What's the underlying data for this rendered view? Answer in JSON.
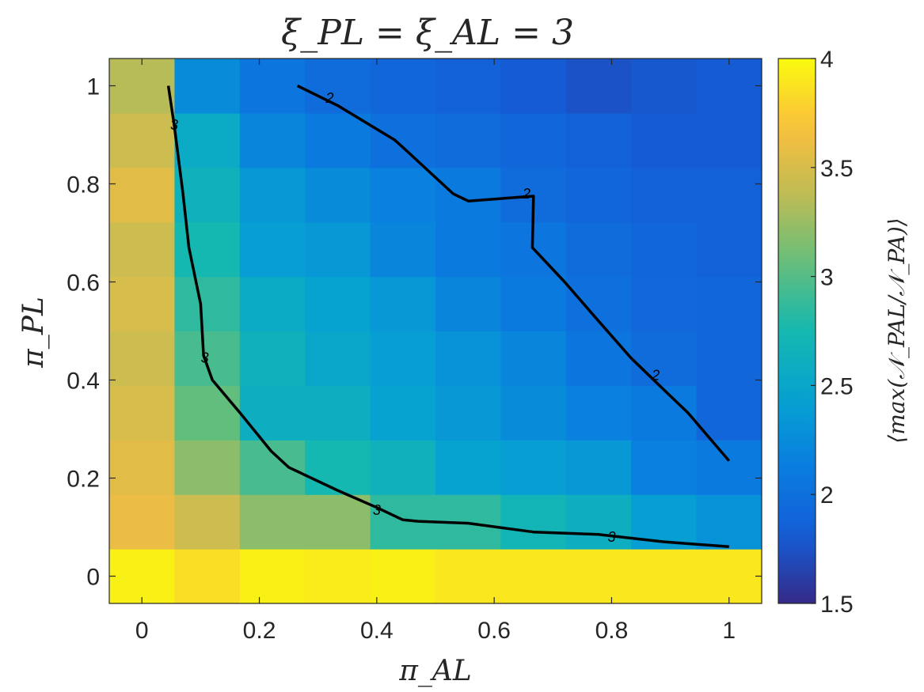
{
  "chart_data": {
    "type": "heatmap",
    "title": "ξ_PL = ξ_AL = 3",
    "xlabel": "π_AL",
    "ylabel": "π_PL",
    "colorbar_label": "⟨max(𝒩_PAL/𝒩_PA)⟩",
    "x": [
      0,
      0.1111,
      0.2222,
      0.3333,
      0.4444,
      0.5556,
      0.6667,
      0.7778,
      0.8889,
      1.0
    ],
    "y": [
      0,
      0.1111,
      0.2222,
      0.3333,
      0.4444,
      0.5556,
      0.6667,
      0.7778,
      0.8889,
      1.0
    ],
    "xlim": [
      -0.0556,
      1.0556
    ],
    "ylim": [
      -0.0556,
      1.0556
    ],
    "xticks": [
      "0",
      "0.2",
      "0.4",
      "0.6",
      "0.8",
      "1"
    ],
    "yticks": [
      "0",
      "0.2",
      "0.4",
      "0.6",
      "0.8",
      "1"
    ],
    "xtick_values": [
      0,
      0.2,
      0.4,
      0.6,
      0.8,
      1
    ],
    "ytick_values": [
      0,
      0.2,
      0.4,
      0.6,
      0.8,
      1
    ],
    "clim": [
      1.5,
      4
    ],
    "colorbar_ticks": [
      "1.5",
      "2",
      "2.5",
      "3",
      "3.5",
      "4"
    ],
    "colorbar_tick_values": [
      1.5,
      2,
      2.5,
      3,
      3.5,
      4
    ],
    "colormap": "parula",
    "z": [
      [
        3.95,
        3.85,
        3.95,
        3.92,
        3.95,
        3.9,
        3.9,
        3.9,
        3.9,
        3.9
      ],
      [
        3.6,
        3.45,
        3.2,
        3.2,
        2.85,
        2.85,
        2.7,
        2.6,
        2.4,
        2.3
      ],
      [
        3.55,
        3.2,
        2.95,
        2.75,
        2.65,
        2.45,
        2.4,
        2.35,
        2.15,
        2.1
      ],
      [
        3.5,
        3.05,
        2.6,
        2.6,
        2.45,
        2.35,
        2.25,
        2.15,
        2.1,
        1.9
      ],
      [
        3.45,
        2.95,
        2.65,
        2.5,
        2.4,
        2.3,
        2.2,
        2.05,
        1.95,
        1.9
      ],
      [
        3.5,
        2.85,
        2.55,
        2.45,
        2.35,
        2.2,
        2.1,
        2.0,
        1.92,
        1.9
      ],
      [
        3.45,
        2.75,
        2.4,
        2.35,
        2.2,
        2.1,
        2.05,
        1.95,
        1.9,
        1.85
      ],
      [
        3.55,
        2.65,
        2.35,
        2.25,
        2.15,
        2.1,
        1.95,
        1.9,
        1.85,
        1.85
      ],
      [
        3.45,
        2.55,
        2.2,
        2.1,
        2.0,
        1.95,
        1.9,
        1.85,
        1.8,
        1.8
      ],
      [
        3.35,
        2.25,
        2.05,
        1.95,
        1.9,
        1.85,
        1.8,
        1.75,
        1.78,
        1.8
      ]
    ],
    "contours": [
      {
        "level": "3",
        "points": [
          [
            0.045,
            1.0
          ],
          [
            0.055,
            0.92
          ],
          [
            0.07,
            0.78
          ],
          [
            0.08,
            0.67
          ],
          [
            0.1,
            0.555
          ],
          [
            0.105,
            0.45
          ],
          [
            0.12,
            0.4
          ],
          [
            0.167,
            0.333
          ],
          [
            0.22,
            0.255
          ],
          [
            0.25,
            0.222
          ],
          [
            0.333,
            0.175
          ],
          [
            0.4,
            0.14
          ],
          [
            0.444,
            0.115
          ],
          [
            0.47,
            0.112
          ],
          [
            0.556,
            0.108
          ],
          [
            0.667,
            0.09
          ],
          [
            0.778,
            0.085
          ],
          [
            0.889,
            0.07
          ],
          [
            1.0,
            0.06
          ]
        ],
        "label_positions": [
          [
            0.055,
            0.92
          ],
          [
            0.107,
            0.445
          ],
          [
            0.4,
            0.135
          ],
          [
            0.8,
            0.08
          ]
        ]
      },
      {
        "level": "2",
        "points": [
          [
            0.265,
            1.0
          ],
          [
            0.333,
            0.96
          ],
          [
            0.43,
            0.89
          ],
          [
            0.444,
            0.875
          ],
          [
            0.53,
            0.78
          ],
          [
            0.556,
            0.765
          ],
          [
            0.667,
            0.775
          ],
          [
            0.665,
            0.67
          ],
          [
            0.72,
            0.6
          ],
          [
            0.778,
            0.52
          ],
          [
            0.833,
            0.445
          ],
          [
            0.889,
            0.38
          ],
          [
            0.93,
            0.333
          ],
          [
            1.0,
            0.235
          ]
        ],
        "label_positions": [
          [
            0.32,
            0.975
          ],
          [
            0.655,
            0.78
          ],
          [
            0.875,
            0.41
          ]
        ]
      }
    ]
  }
}
